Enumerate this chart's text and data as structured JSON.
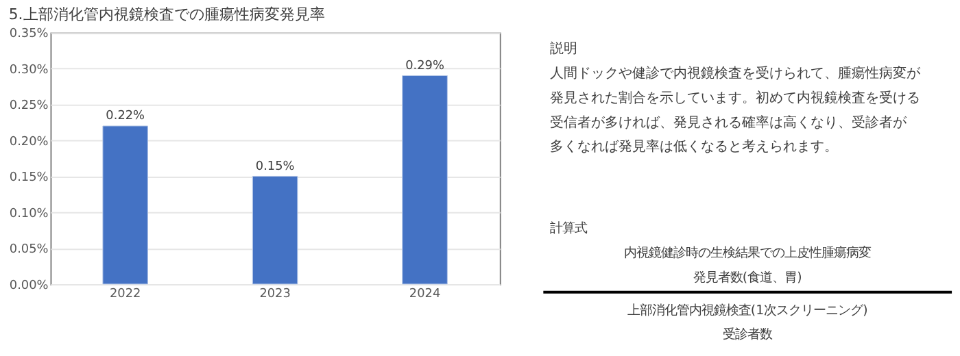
{
  "chart_data": [
    {
      "type": "bar",
      "title": "5.上部消化管内視鏡検査での腫瘍性病変発見率",
      "categories": [
        "2022",
        "2023",
        "2024"
      ],
      "values": [
        0.22,
        0.15,
        0.29
      ],
      "color": "#4472c4",
      "value_labels": [
        "0.22%",
        "0.15%",
        "0.29%"
      ],
      "ylim": [
        0,
        0.35
      ],
      "yticks": [
        {
          "value": 0,
          "label": "0.00%"
        },
        {
          "value": 0.05,
          "label": "0.05%"
        },
        {
          "value": 0.1,
          "label": "0.10%"
        },
        {
          "value": 0.15,
          "label": "0.15%"
        },
        {
          "value": 0.2,
          "label": "0.20%"
        },
        {
          "value": 0.25,
          "label": "0.25%"
        },
        {
          "value": 0.3,
          "label": "0.30%"
        },
        {
          "value": 0.35,
          "label": "0.35%"
        }
      ],
      "grid": "y"
    },
    {
      "type": "other",
      "title": "説明",
      "annotations": [
        "人間ドックや健診で内視鏡検査を受けられて、腫瘍性病変が",
        "発見された割合を示しています。初めて内視鏡検査を受ける",
        "受信者が多ければ、発見される確率は高くなり、受診者が",
        "多くなれば発見率は低くなると考えられます。"
      ]
    },
    {
      "type": "other",
      "title": "計算式",
      "annotations": [
        "内視鏡健診時の生検結果での上皮性腫瘍病変",
        "発見者数(食道、胃)",
        "上部消化管内視鏡検査(1次スクリーニング)",
        "受診者数"
      ]
    }
  ]
}
